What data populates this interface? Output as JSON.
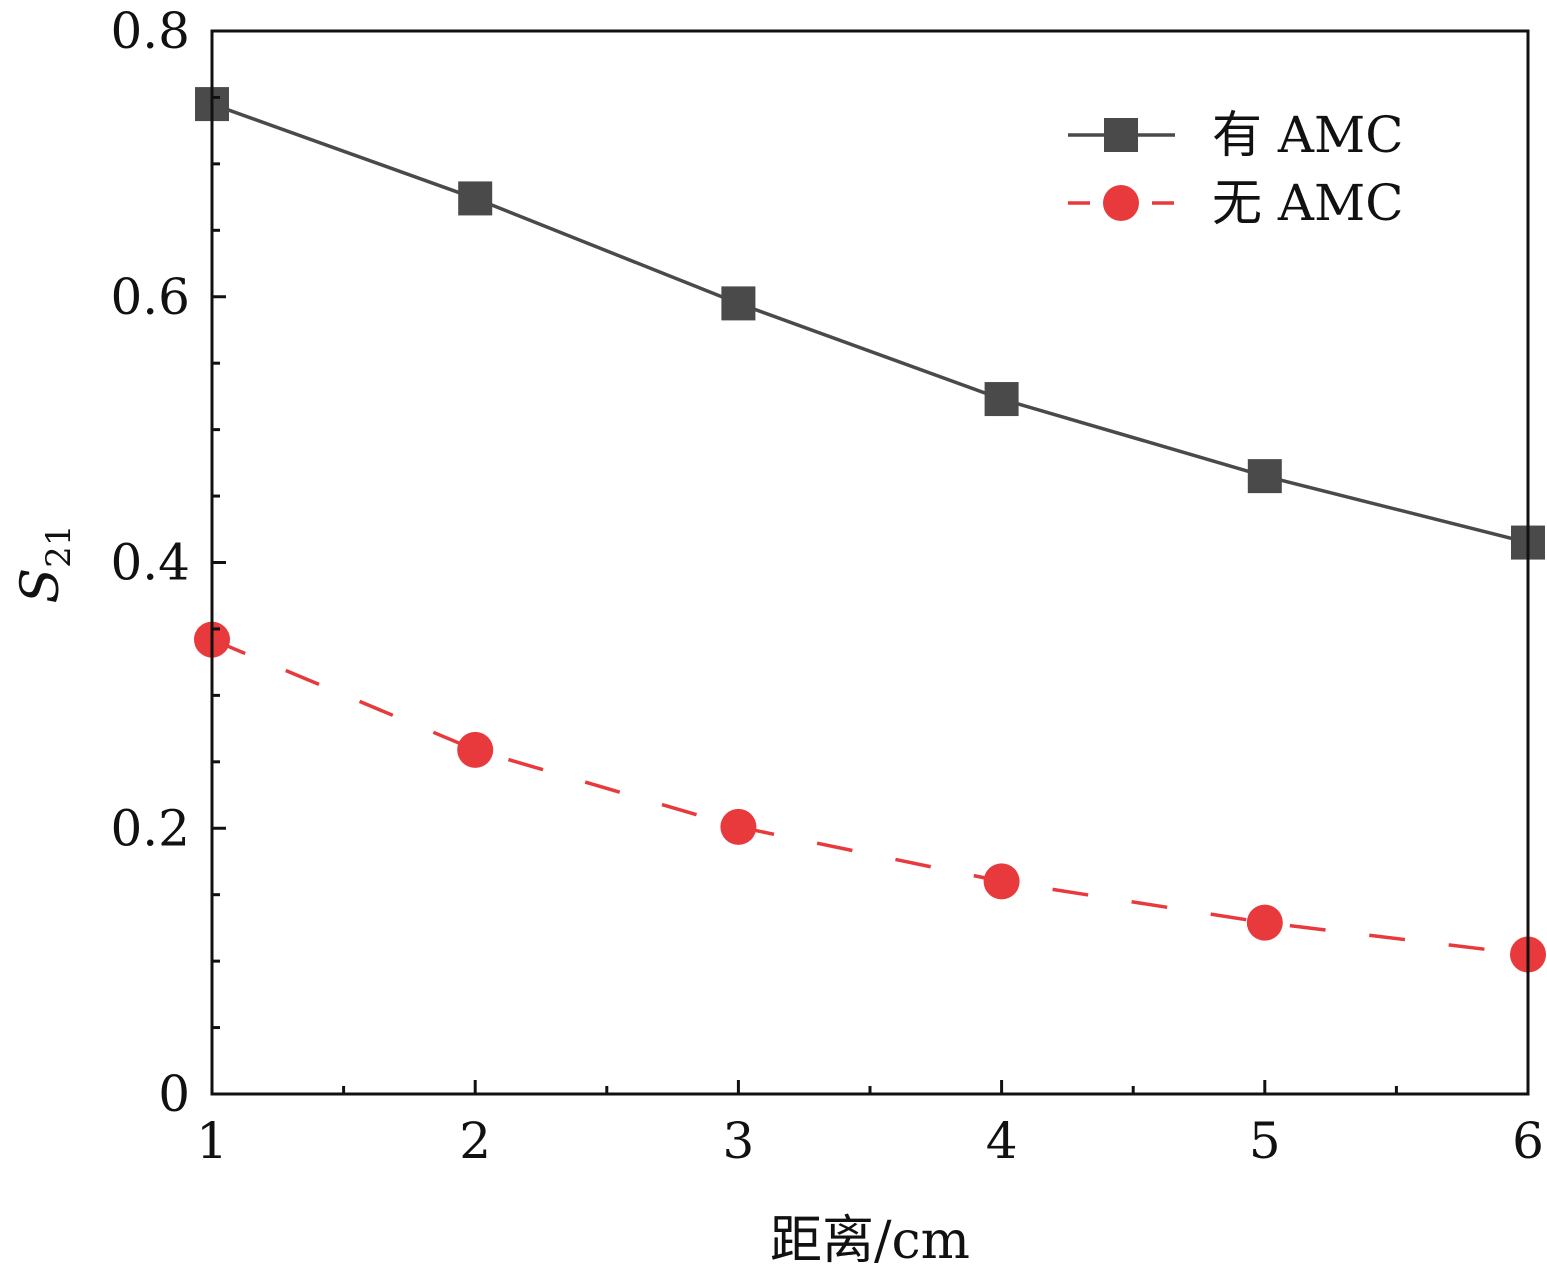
{
  "chart_data": {
    "type": "line",
    "x": [
      1,
      2,
      3,
      4,
      5,
      6
    ],
    "xlabel": "距离/cm",
    "ylabel": "S",
    "ylabel_subscript": "21",
    "xlim": [
      1,
      6
    ],
    "ylim": [
      0,
      0.8
    ],
    "xticks": [
      1,
      2,
      3,
      4,
      5,
      6
    ],
    "xtick_labels": [
      "1",
      "2",
      "3",
      "4",
      "5",
      "6"
    ],
    "yticks": [
      0,
      0.2,
      0.4,
      0.6,
      0.8
    ],
    "ytick_labels": [
      "0",
      "0.2",
      "0.4",
      "0.6",
      "0.8"
    ],
    "grid": false,
    "legend_position": "top-right",
    "series": [
      {
        "name": "有 AMC",
        "values": [
          0.745,
          0.674,
          0.595,
          0.523,
          0.465,
          0.415
        ],
        "color": "#4a4a4a",
        "marker": "square",
        "line_style": "solid"
      },
      {
        "name": "无 AMC",
        "values": [
          0.342,
          0.259,
          0.201,
          0.16,
          0.129,
          0.105
        ],
        "color": "#e8393c",
        "marker": "circle",
        "line_style": "dashed"
      }
    ]
  }
}
